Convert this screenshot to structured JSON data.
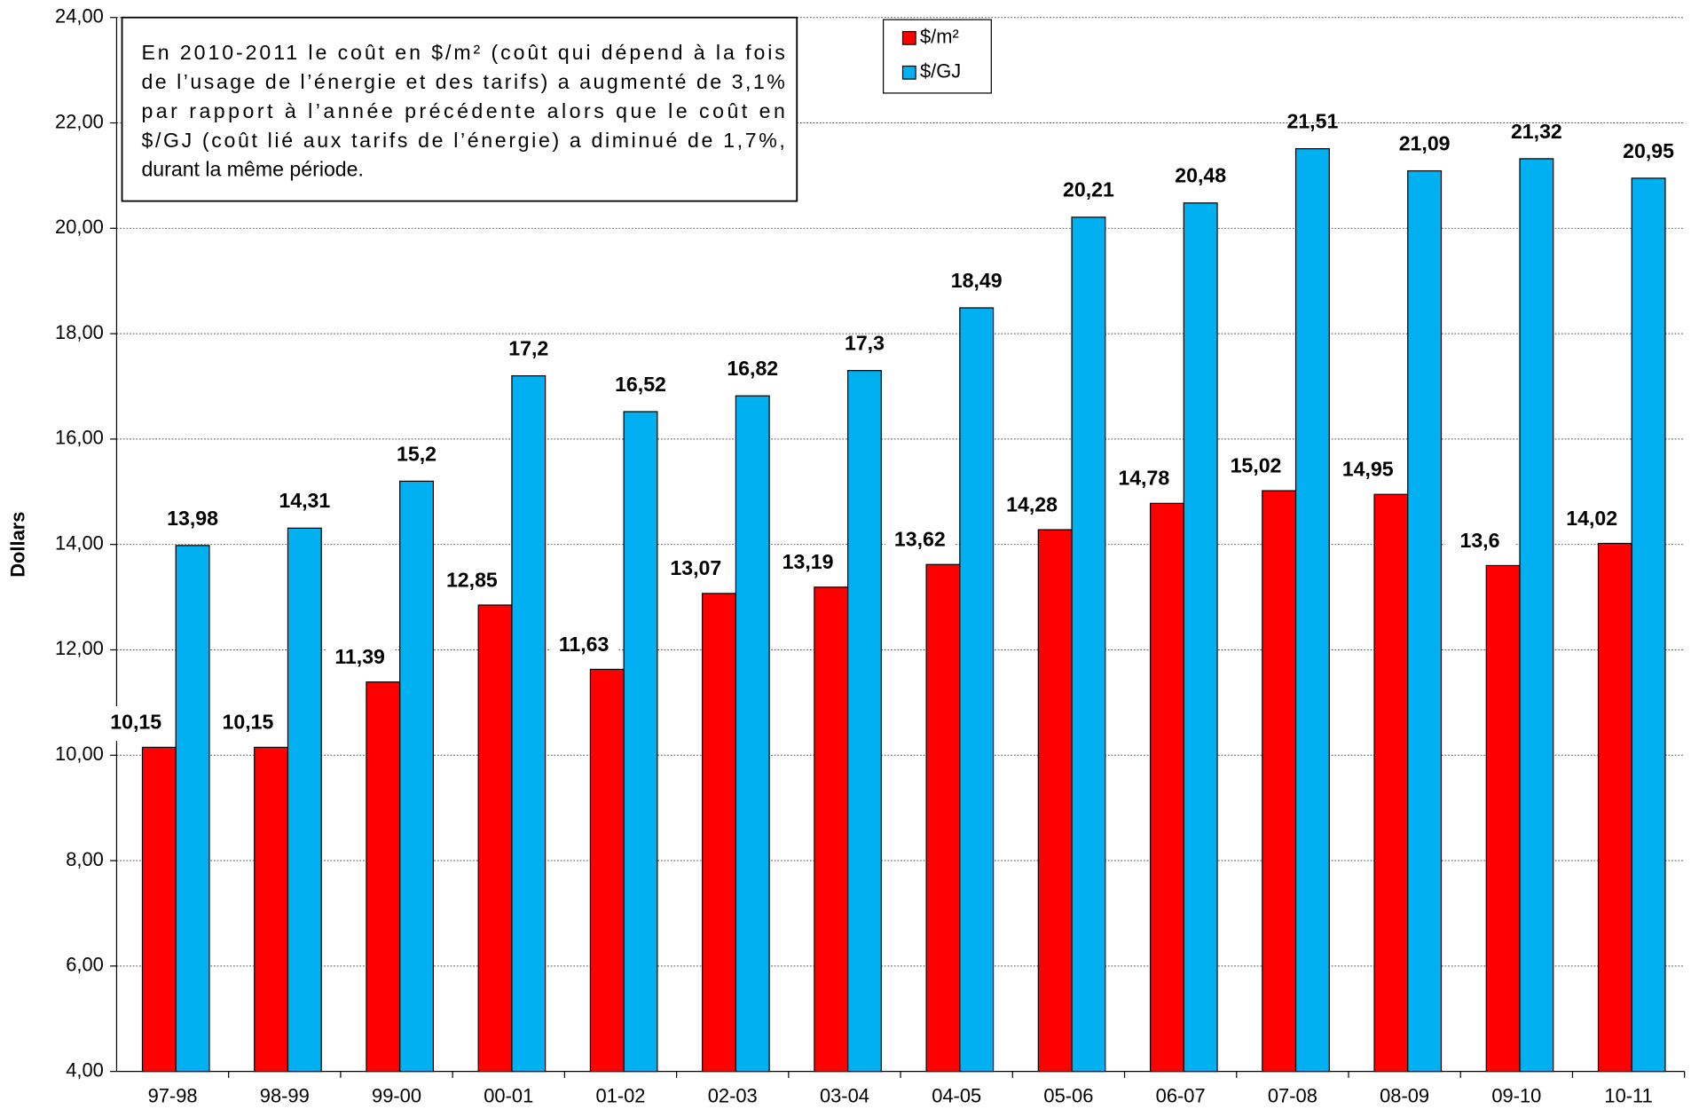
{
  "chart_data": {
    "type": "bar",
    "y_label": "Dollars",
    "annotation_lines": [
      "En 2010-2011 le coût en $/m² (coût qui dépend à la fois",
      "de l’usage de l’énergie et des tarifs) a augmenté de 3,1%",
      "par rapport à l’année précédente alors que le coût en",
      "$/GJ (coût lié aux tarifs de l’énergie) a diminué de 1,7%,",
      "durant la même période."
    ],
    "categories": [
      "97-98",
      "98-99",
      "99-00",
      "00-01",
      "01-02",
      "02-03",
      "03-04",
      "04-05",
      "05-06",
      "06-07",
      "07-08",
      "08-09",
      "09-10",
      "10-11"
    ],
    "series": [
      {
        "name": "$/m²",
        "color": "#ff0000",
        "values": [
          10.15,
          10.15,
          11.39,
          12.85,
          11.63,
          13.07,
          13.19,
          13.62,
          14.28,
          14.78,
          15.02,
          14.95,
          13.6,
          14.02
        ],
        "value_labels": [
          "10,15",
          "10,15",
          "11,39",
          "12,85",
          "11,63",
          "13,07",
          "13,19",
          "13,62",
          "14,28",
          "14,78",
          "15,02",
          "14,95",
          "13,6",
          "14,02"
        ]
      },
      {
        "name": "$/GJ",
        "color": "#00b0f0",
        "values": [
          13.98,
          14.31,
          15.2,
          17.2,
          16.52,
          16.82,
          17.3,
          18.49,
          20.21,
          20.48,
          21.51,
          21.09,
          21.32,
          20.95
        ],
        "value_labels": [
          "13,98",
          "14,31",
          "15,2",
          "17,2",
          "16,52",
          "16,82",
          "17,3",
          "18,49",
          "20,21",
          "20,48",
          "21,51",
          "21,09",
          "21,32",
          "20,95"
        ]
      }
    ],
    "ylim": [
      4,
      24
    ],
    "yticks": [
      {
        "value": 4,
        "label": "4,00"
      },
      {
        "value": 6,
        "label": "6,00"
      },
      {
        "value": 8,
        "label": "8,00"
      },
      {
        "value": 10,
        "label": "10,00"
      },
      {
        "value": 12,
        "label": "12,00"
      },
      {
        "value": 14,
        "label": "14,00"
      },
      {
        "value": 16,
        "label": "16,00"
      },
      {
        "value": 18,
        "label": "18,00"
      },
      {
        "value": 20,
        "label": "20,00"
      },
      {
        "value": 22,
        "label": "22,00"
      },
      {
        "value": 24,
        "label": "24,00"
      }
    ],
    "grid": true,
    "legend": "top"
  }
}
